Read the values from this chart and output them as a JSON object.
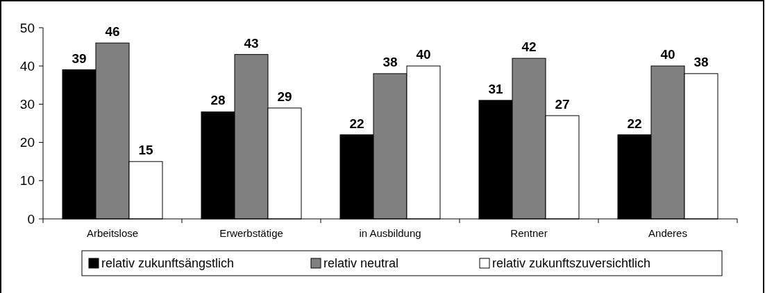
{
  "chart_data": {
    "type": "bar",
    "categories": [
      "Arbeitslose",
      "Erwerbstätige",
      "in Ausbildung",
      "Rentner",
      "Anderes"
    ],
    "series": [
      {
        "name": "relativ zukunftsängstlich",
        "color": "#000000",
        "values": [
          39,
          28,
          22,
          31,
          22
        ]
      },
      {
        "name": "relativ neutral",
        "color": "#808080",
        "values": [
          46,
          43,
          38,
          42,
          40
        ]
      },
      {
        "name": "relativ zukunftszuversichtlich",
        "color": "#ffffff",
        "values": [
          15,
          29,
          40,
          27,
          38
        ]
      }
    ],
    "ylim": [
      0,
      50
    ],
    "yticks": [
      0,
      10,
      20,
      30,
      40,
      50
    ],
    "grid": false,
    "data_labels": true,
    "legend": "bottom"
  }
}
